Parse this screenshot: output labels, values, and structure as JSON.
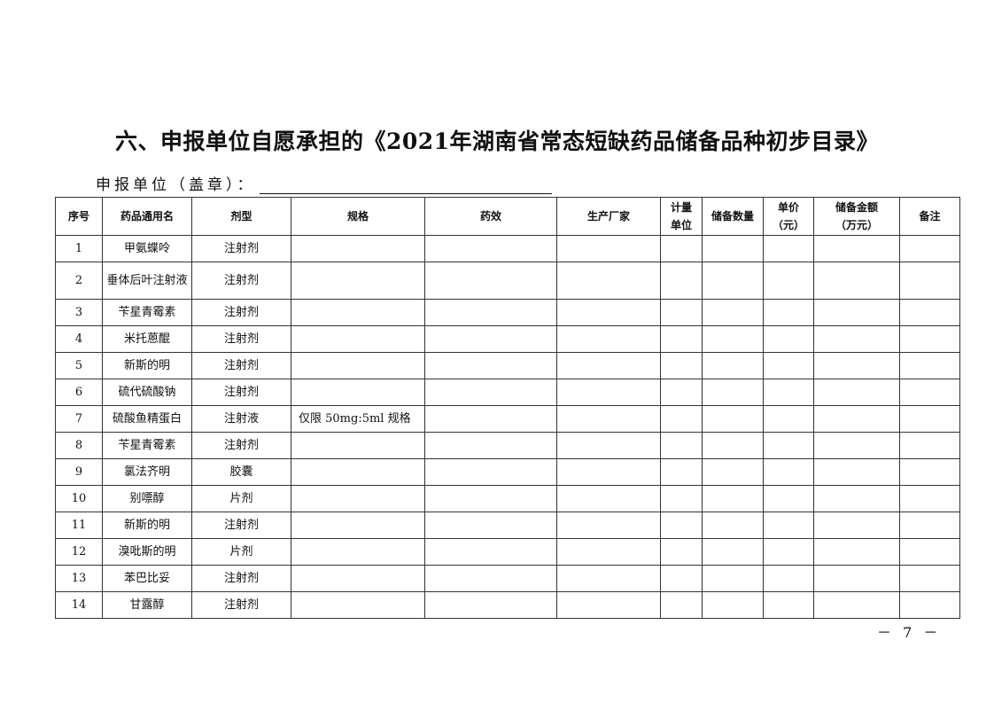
{
  "title": "六、申报单位自愿承担的《2021年湖南省常态短缺药品储备品种初步目录》",
  "unit_label": "申报单位（盖章）：",
  "table": {
    "headers": [
      "序号",
      "药品通用名",
      "剂型",
      "规格",
      "药效",
      "生产厂家",
      "计量单位",
      "储备数量",
      "单价（元）",
      "储备金额（万元）",
      "备注"
    ],
    "rows": [
      {
        "no": "1",
        "name": "甲氨蝶呤",
        "form": "注射剂",
        "spec": ""
      },
      {
        "no": "2",
        "name": "垂体后叶注射液",
        "form": "注射剂",
        "spec": ""
      },
      {
        "no": "3",
        "name": "苄星青霉素",
        "form": "注射剂",
        "spec": ""
      },
      {
        "no": "4",
        "name": "米托蒽醌",
        "form": "注射剂",
        "spec": ""
      },
      {
        "no": "5",
        "name": "新斯的明",
        "form": "注射剂",
        "spec": ""
      },
      {
        "no": "6",
        "name": "硫代硫酸钠",
        "form": "注射剂",
        "spec": ""
      },
      {
        "no": "7",
        "name": "硫酸鱼精蛋白",
        "form": "注射液",
        "spec": "仅限 50mg:5ml 规格"
      },
      {
        "no": "8",
        "name": "苄星青霉素",
        "form": "注射剂",
        "spec": ""
      },
      {
        "no": "9",
        "name": "氯法齐明",
        "form": "胶囊",
        "spec": ""
      },
      {
        "no": "10",
        "name": "别嘌醇",
        "form": "片剂",
        "spec": ""
      },
      {
        "no": "11",
        "name": "新斯的明",
        "form": "注射剂",
        "spec": ""
      },
      {
        "no": "12",
        "name": "溴吡斯的明",
        "form": "片剂",
        "spec": ""
      },
      {
        "no": "13",
        "name": "苯巴比妥",
        "form": "注射剂",
        "spec": ""
      },
      {
        "no": "14",
        "name": "甘露醇",
        "form": "注射剂",
        "spec": ""
      }
    ]
  },
  "page_number": "－ 7 －"
}
